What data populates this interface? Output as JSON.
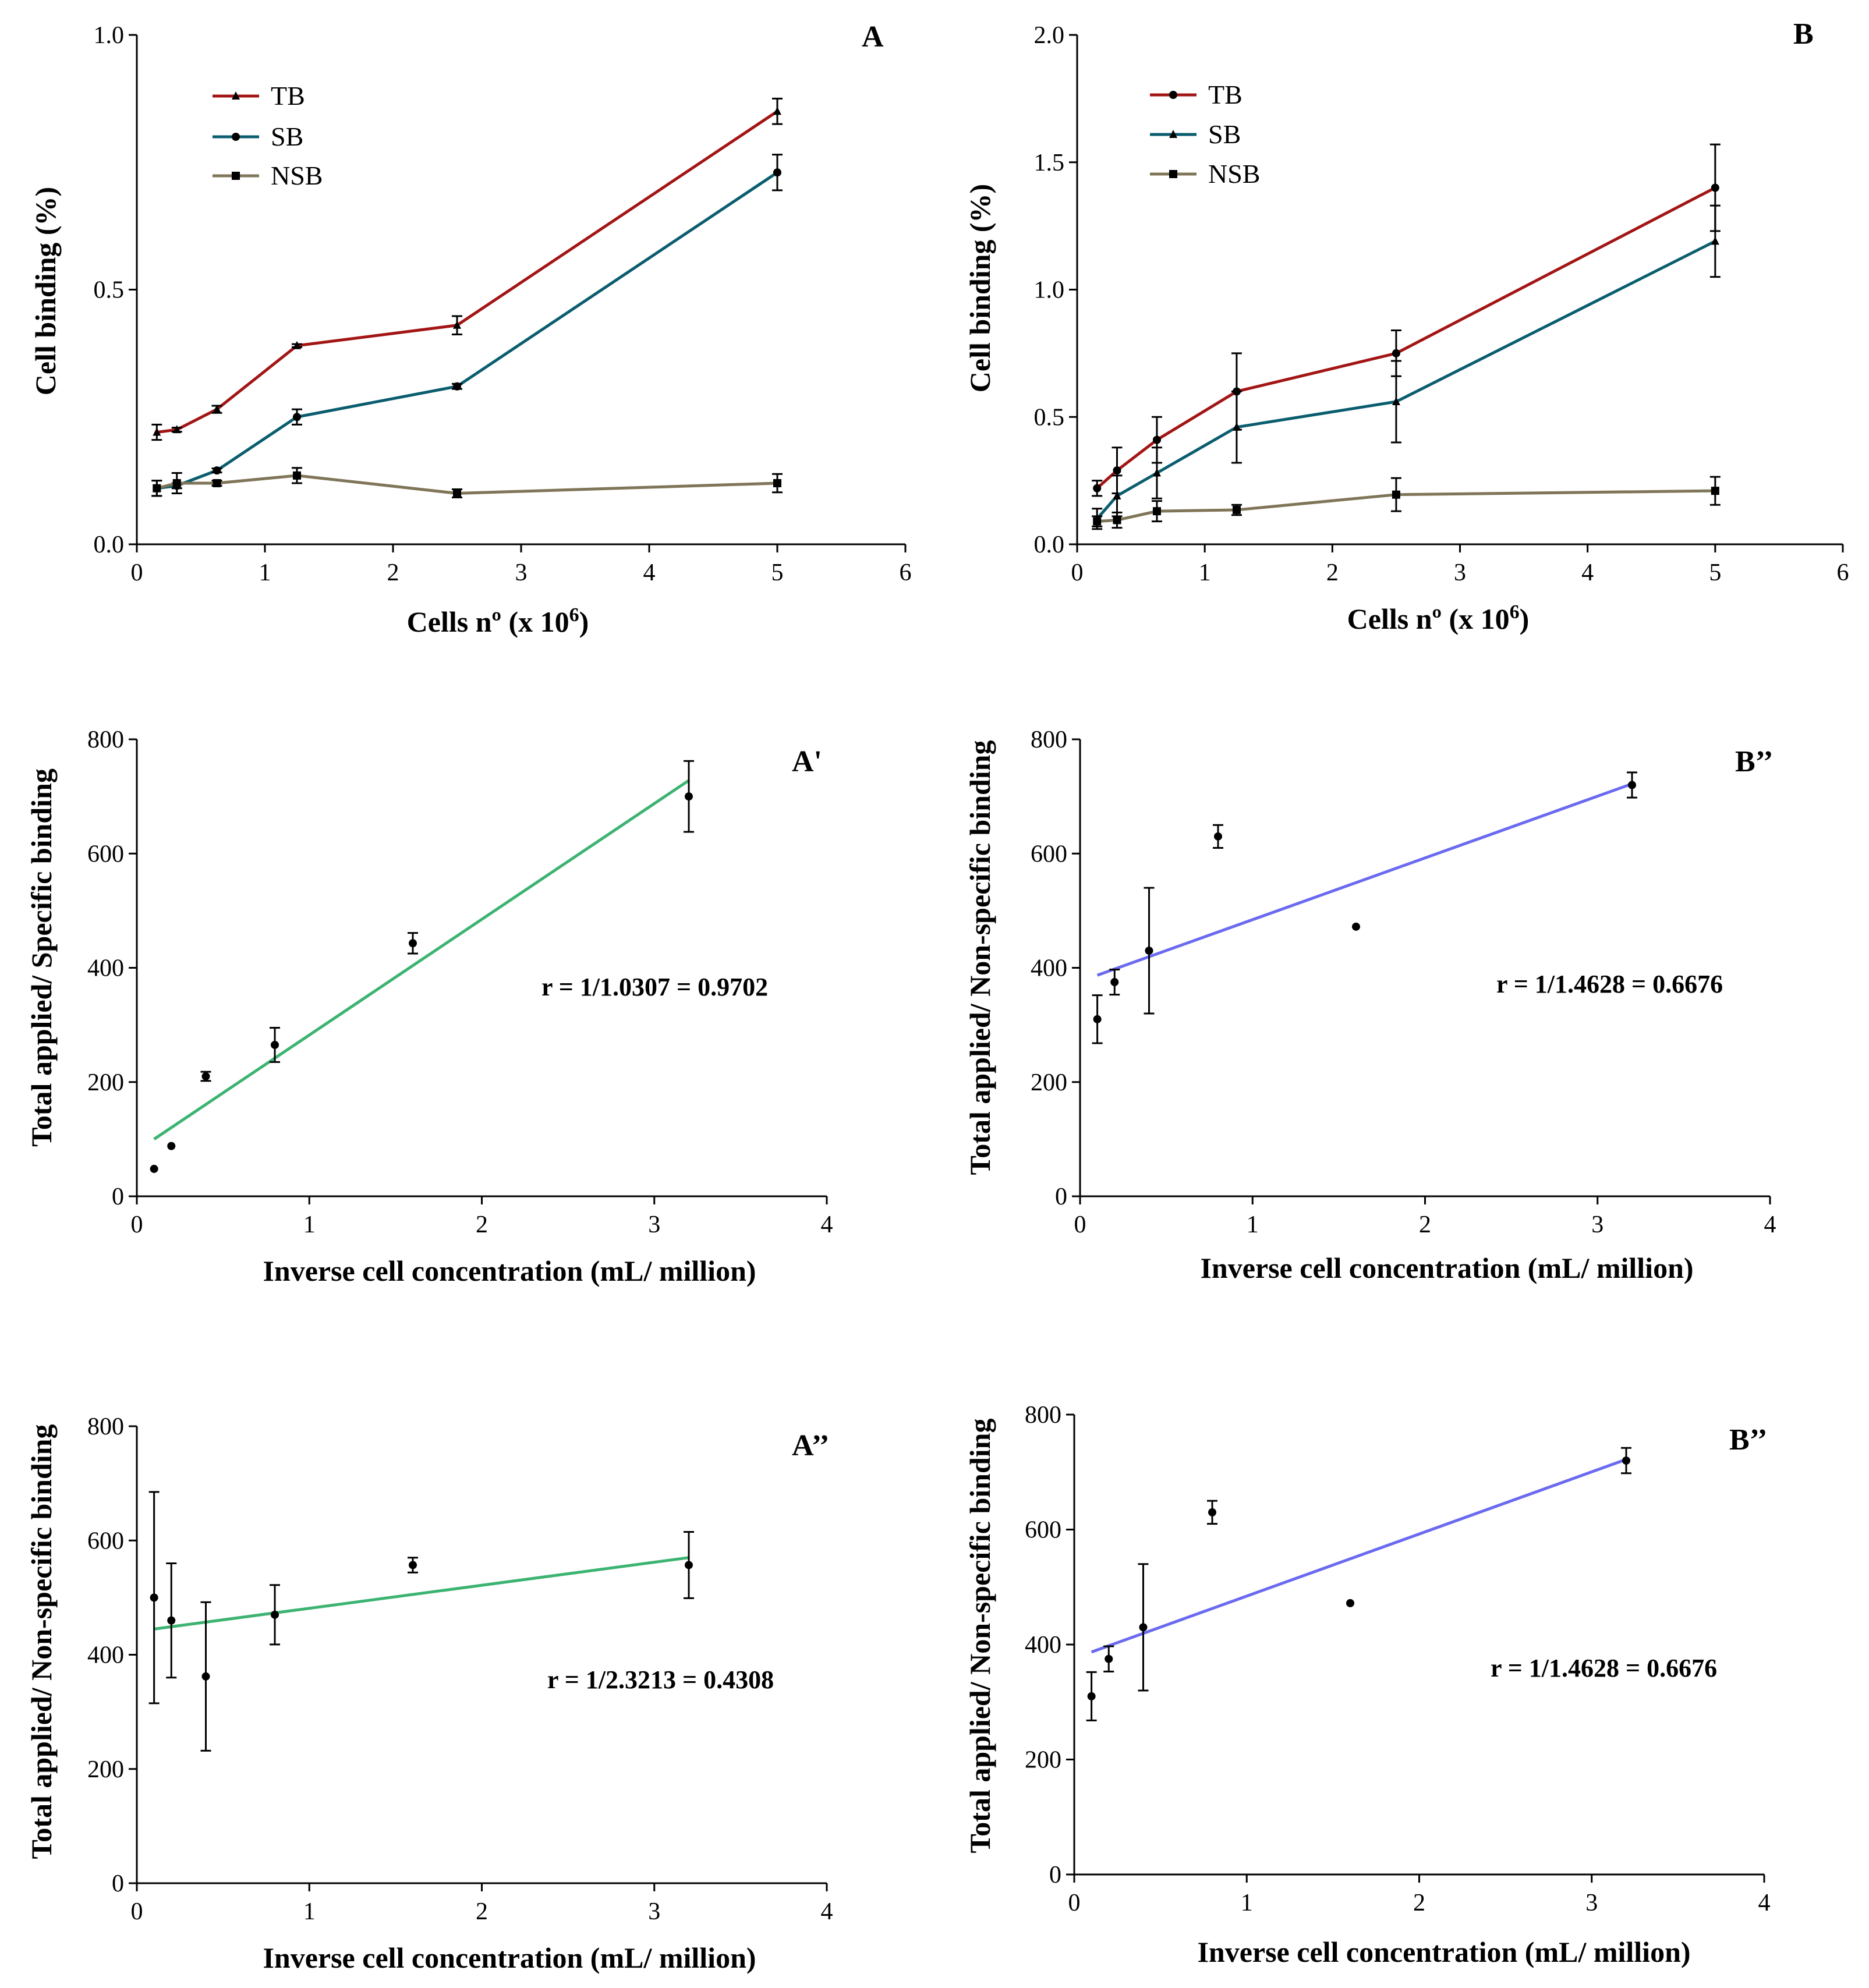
{
  "chart_data": [
    {
      "id": "A",
      "type": "line",
      "panel_label": "A",
      "xlabel": "Cells nº (x 10",
      "xlabel_sup": "6",
      "xlabel_end": ")",
      "ylabel": "Cell binding (%)",
      "xlim": [
        0,
        6
      ],
      "ylim": [
        0,
        1.0
      ],
      "xticks": [
        "0",
        "1",
        "2",
        "3",
        "4",
        "5",
        "6"
      ],
      "yticks": [
        "0.0",
        "0.5",
        "1.0"
      ],
      "legend_position": "top-left",
      "series": [
        {
          "name": "TB",
          "color": "#a31515",
          "marker": "triangle",
          "x": [
            0.156,
            0.3125,
            0.625,
            1.25,
            2.5,
            5
          ],
          "y": [
            0.22,
            0.225,
            0.265,
            0.39,
            0.43,
            0.85
          ],
          "err": [
            0.015,
            0.004,
            0.007,
            0.003,
            0.018,
            0.025
          ]
        },
        {
          "name": "SB",
          "color": "#0a5d6e",
          "marker": "circle",
          "x": [
            0.156,
            0.3125,
            0.625,
            1.25,
            2.5,
            5
          ],
          "y": [
            0.11,
            0.115,
            0.145,
            0.25,
            0.31,
            0.73
          ],
          "err": [
            0.015,
            0.005,
            0.004,
            0.015,
            0.005,
            0.035
          ]
        },
        {
          "name": "NSB",
          "color": "#7f7558",
          "marker": "square",
          "x": [
            0.156,
            0.3125,
            0.625,
            1.25,
            2.5,
            5
          ],
          "y": [
            0.11,
            0.12,
            0.12,
            0.135,
            0.1,
            0.12
          ],
          "err": [
            0.015,
            0.02,
            0.005,
            0.015,
            0.008,
            0.018
          ]
        }
      ]
    },
    {
      "id": "B",
      "type": "line",
      "panel_label": "B",
      "xlabel": "Cells nº  (x 10",
      "xlabel_sup": "6",
      "xlabel_end": ")",
      "ylabel": "Cell binding (%)",
      "xlim": [
        0,
        6
      ],
      "ylim": [
        0,
        2.0
      ],
      "xticks": [
        "0",
        "1",
        "2",
        "3",
        "4",
        "5",
        "6"
      ],
      "yticks": [
        "0.0",
        "0.5",
        "1.0",
        "1.5",
        "2.0"
      ],
      "legend_position": "top-left",
      "series": [
        {
          "name": "TB",
          "color": "#a31515",
          "marker": "circle",
          "x": [
            0.156,
            0.3125,
            0.625,
            1.25,
            2.5,
            5
          ],
          "y": [
            0.22,
            0.29,
            0.41,
            0.6,
            0.75,
            1.4
          ],
          "err": [
            0.03,
            0.09,
            0.09,
            0.15,
            0.09,
            0.17
          ]
        },
        {
          "name": "SB",
          "color": "#0a5d6e",
          "marker": "triangle",
          "x": [
            0.156,
            0.3125,
            0.625,
            1.25,
            2.5,
            5
          ],
          "y": [
            0.1,
            0.19,
            0.28,
            0.46,
            0.56,
            1.19
          ],
          "err": [
            0.04,
            0.08,
            0.1,
            0.14,
            0.16,
            0.14
          ]
        },
        {
          "name": "NSB",
          "color": "#7f7558",
          "marker": "square",
          "x": [
            0.156,
            0.3125,
            0.625,
            1.25,
            2.5,
            5
          ],
          "y": [
            0.09,
            0.095,
            0.13,
            0.135,
            0.195,
            0.21
          ],
          "err": [
            0.02,
            0.03,
            0.04,
            0.02,
            0.065,
            0.055
          ]
        }
      ]
    },
    {
      "id": "A1",
      "type": "scatter",
      "panel_label": "A'",
      "xlabel": "Inverse cell concentration (mL/ million)",
      "ylabel": "Total applied/ Specific binding",
      "xlim": [
        0,
        4
      ],
      "ylim": [
        0,
        800
      ],
      "xticks": [
        "0",
        "1",
        "2",
        "3",
        "4"
      ],
      "yticks": [
        "0",
        "200",
        "400",
        "600",
        "800"
      ],
      "annotation": "r = 1/1.0307 = 0.9702",
      "fit_color": "#3cb371",
      "fit": {
        "x": [
          0.1,
          3.2
        ],
        "y": [
          100,
          728
        ]
      },
      "points": {
        "x": [
          0.1,
          0.2,
          0.4,
          0.8,
          1.6,
          3.2
        ],
        "y": [
          48,
          88,
          210,
          265,
          443,
          700
        ],
        "err": [
          0,
          0,
          8,
          30,
          18,
          62
        ]
      }
    },
    {
      "id": "B1",
      "type": "scatter",
      "panel_label": "B’’",
      "xlabel": "Inverse cell concentration (mL/ million)",
      "ylabel": "Total applied/ Non-specific binding",
      "xlim": [
        0,
        4
      ],
      "ylim": [
        0,
        800
      ],
      "xticks": [
        "0",
        "1",
        "2",
        "3",
        "4"
      ],
      "yticks": [
        "0",
        "200",
        "400",
        "600",
        "800"
      ],
      "annotation": "r = 1/1.4628 = 0.6676",
      "fit_color": "#6a6af0",
      "fit": {
        "x": [
          0.1,
          3.2
        ],
        "y": [
          387,
          722
        ]
      },
      "points": {
        "x": [
          0.1,
          0.2,
          0.4,
          0.8,
          1.6,
          3.2
        ],
        "y": [
          310,
          375,
          430,
          630,
          472,
          720
        ],
        "err": [
          42,
          22,
          110,
          20,
          0,
          22
        ]
      }
    },
    {
      "id": "A2",
      "type": "scatter",
      "panel_label": "A’’",
      "xlabel": "Inverse cell concentration (mL/ million)",
      "ylabel": "Total applied/ Non-specific binding",
      "xlim": [
        0,
        4
      ],
      "ylim": [
        0,
        800
      ],
      "xticks": [
        "0",
        "1",
        "2",
        "3",
        "4"
      ],
      "yticks": [
        "0",
        "200",
        "400",
        "600",
        "800"
      ],
      "annotation": "r = 1/2.3213 = 0.4308",
      "fit_color": "#3cb371",
      "fit": {
        "x": [
          0.1,
          3.2
        ],
        "y": [
          445,
          570
        ]
      },
      "points": {
        "x": [
          0.1,
          0.2,
          0.4,
          0.8,
          1.6,
          3.2
        ],
        "y": [
          500,
          460,
          362,
          470,
          557,
          557
        ],
        "err": [
          185,
          100,
          130,
          52,
          13,
          58
        ]
      }
    },
    {
      "id": "B2",
      "type": "scatter",
      "panel_label": "B’’",
      "xlabel": "Inverse cell concentration (mL/ million)",
      "ylabel": "Total applied/ Non-specific binding",
      "xlim": [
        0,
        4
      ],
      "ylim": [
        0,
        800
      ],
      "xticks": [
        "0",
        "1",
        "2",
        "3",
        "4"
      ],
      "yticks": [
        "0",
        "200",
        "400",
        "600",
        "800"
      ],
      "annotation": "r = 1/1.4628 = 0.6676",
      "fit_color": "#6a6af0",
      "fit": {
        "x": [
          0.1,
          3.2
        ],
        "y": [
          387,
          722
        ]
      },
      "points": {
        "x": [
          0.1,
          0.2,
          0.4,
          0.8,
          1.6,
          3.2
        ],
        "y": [
          310,
          375,
          430,
          630,
          472,
          720
        ],
        "err": [
          42,
          22,
          110,
          20,
          0,
          22
        ]
      }
    }
  ]
}
